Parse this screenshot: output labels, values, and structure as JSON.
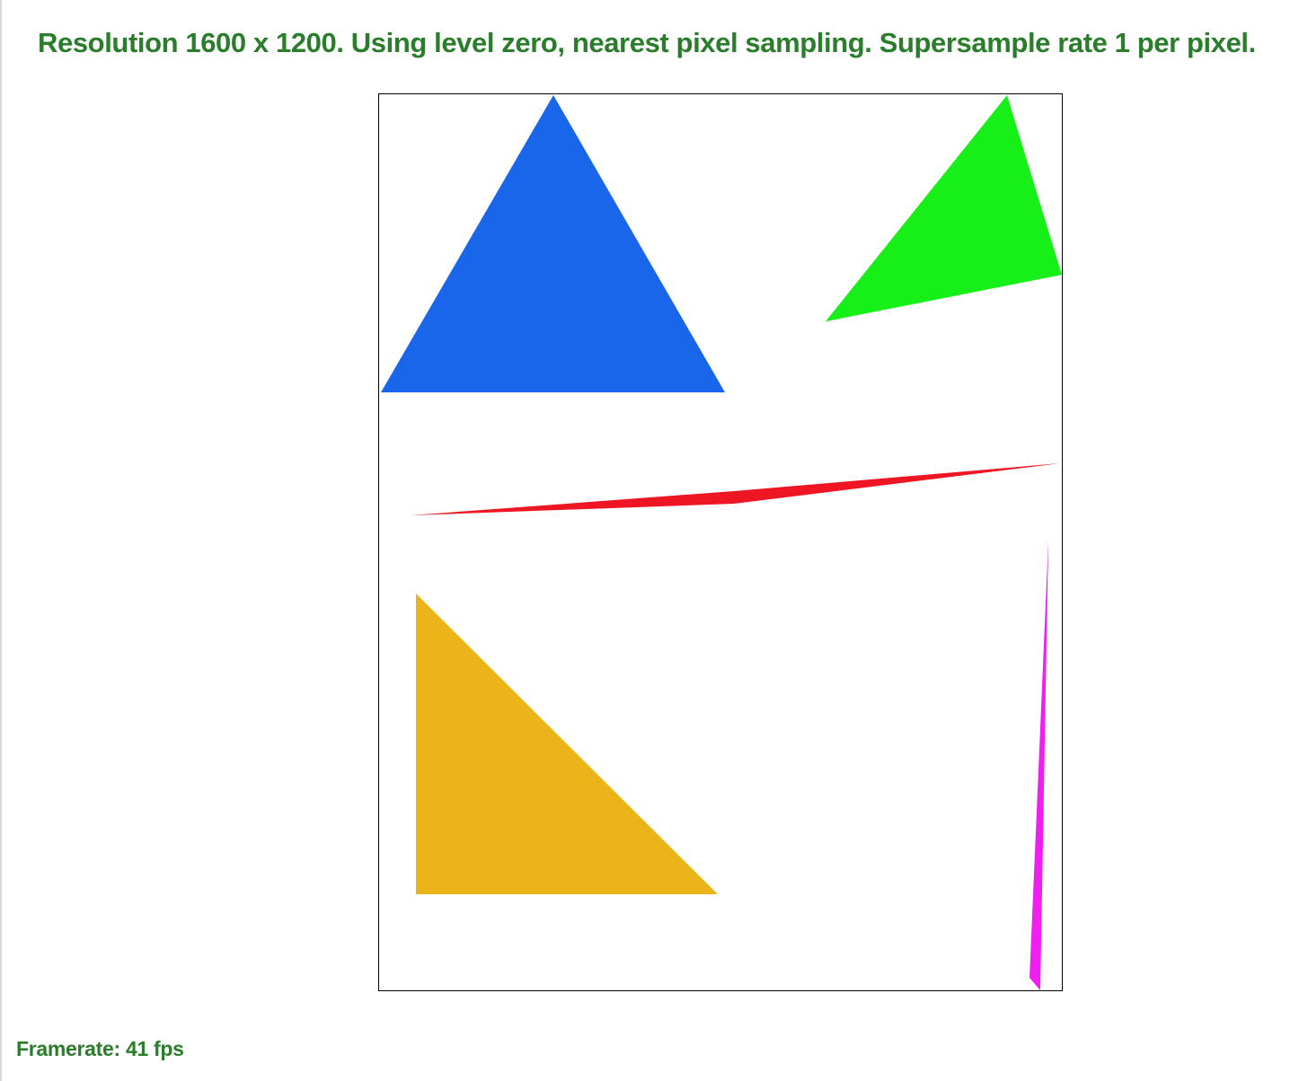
{
  "header": {
    "text": "Resolution 1600 x 1200. Using level zero, nearest pixel sampling. Supersample rate 1 per pixel."
  },
  "footer": {
    "framerate": "Framerate: 41 fps"
  },
  "colors": {
    "status_text": "#2a7d2a",
    "border": "#000000",
    "canvas_background": "#ffffff"
  },
  "scene": {
    "triangles": [
      {
        "name": "blue-triangle",
        "color": "#1a66ea"
      },
      {
        "name": "green-triangle",
        "color": "#17ef18"
      },
      {
        "name": "red-triangle",
        "color": "#ee1622"
      },
      {
        "name": "magenta-triangle",
        "color": "#ee1ff0"
      },
      {
        "name": "yellow-triangle",
        "color": "#ebb519"
      }
    ]
  }
}
